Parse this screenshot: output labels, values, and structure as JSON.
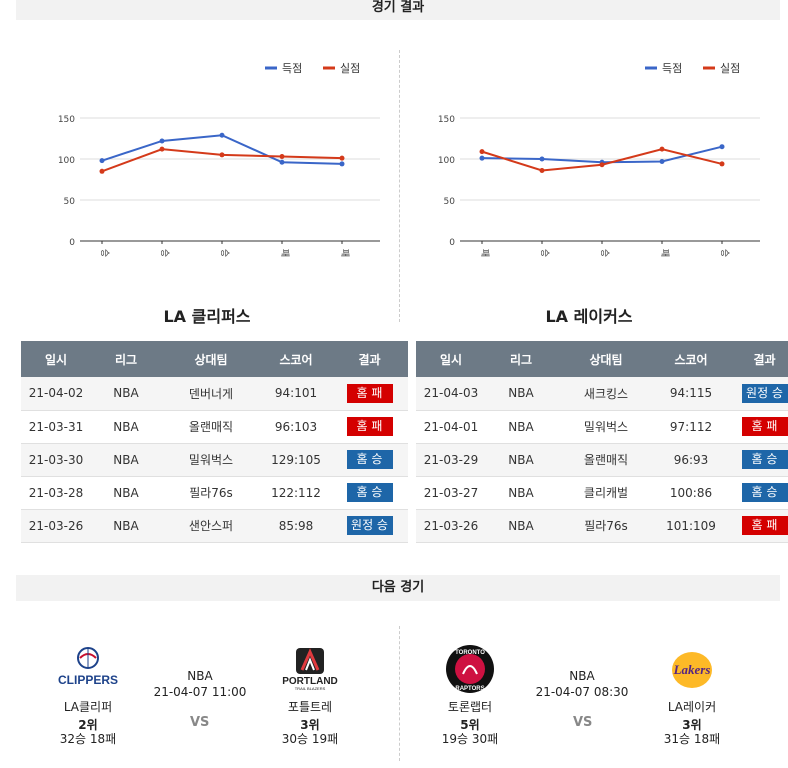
{
  "sections": {
    "results_title": "경기 결과",
    "next_title": "다음 경기"
  },
  "legend": {
    "score": "득점",
    "conceded": "실점"
  },
  "colors": {
    "score": "#3a66c8",
    "conceded": "#d43a1a",
    "red_badge": "#d40000",
    "blue_badge": "#1e66a8"
  },
  "table_headers": {
    "date": "일시",
    "league": "리그",
    "opponent": "상대팀",
    "score": "스코어",
    "result": "결과"
  },
  "left": {
    "team": "LA 클리퍼스",
    "games": [
      {
        "date": "21-04-02",
        "league": "NBA",
        "opponent": "덴버너게",
        "score": "94:101",
        "result": "홈 패",
        "color": "red"
      },
      {
        "date": "21-03-31",
        "league": "NBA",
        "opponent": "올랜매직",
        "score": "96:103",
        "result": "홈 패",
        "color": "red"
      },
      {
        "date": "21-03-30",
        "league": "NBA",
        "opponent": "밀워벅스",
        "score": "129:105",
        "result": "홈 승",
        "color": "blue"
      },
      {
        "date": "21-03-28",
        "league": "NBA",
        "opponent": "필라76s",
        "score": "122:112",
        "result": "홈 승",
        "color": "blue"
      },
      {
        "date": "21-03-26",
        "league": "NBA",
        "opponent": "샌안스퍼",
        "score": "85:98",
        "result": "원정 승",
        "color": "blue"
      }
    ]
  },
  "right": {
    "team": "LA 레이커스",
    "games": [
      {
        "date": "21-04-03",
        "league": "NBA",
        "opponent": "새크킹스",
        "score": "94:115",
        "result": "원정 승",
        "color": "blue"
      },
      {
        "date": "21-04-01",
        "league": "NBA",
        "opponent": "밀워벅스",
        "score": "97:112",
        "result": "홈 패",
        "color": "red"
      },
      {
        "date": "21-03-29",
        "league": "NBA",
        "opponent": "올랜매직",
        "score": "96:93",
        "result": "홈 승",
        "color": "blue"
      },
      {
        "date": "21-03-27",
        "league": "NBA",
        "opponent": "클리캐벌",
        "score": "100:86",
        "result": "홈 승",
        "color": "blue"
      },
      {
        "date": "21-03-26",
        "league": "NBA",
        "opponent": "필라76s",
        "score": "101:109",
        "result": "홈 패",
        "color": "red"
      }
    ]
  },
  "chart_data": [
    {
      "type": "line",
      "categories": [
        "승",
        "승",
        "승",
        "패",
        "패"
      ],
      "series": [
        {
          "name": "득점",
          "values": [
            98,
            122,
            129,
            96,
            94
          ]
        },
        {
          "name": "실점",
          "values": [
            85,
            112,
            105,
            103,
            101
          ]
        }
      ],
      "yticks": [
        0,
        50,
        100,
        150
      ],
      "ylim": [
        0,
        150
      ],
      "legend": "top-right",
      "grid": true
    },
    {
      "type": "line",
      "categories": [
        "패",
        "승",
        "승",
        "패",
        "승"
      ],
      "series": [
        {
          "name": "득점",
          "values": [
            101,
            100,
            96,
            97,
            115
          ]
        },
        {
          "name": "실점",
          "values": [
            109,
            86,
            93,
            112,
            94
          ]
        }
      ],
      "yticks": [
        0,
        50,
        100,
        150
      ],
      "ylim": [
        0,
        150
      ],
      "legend": "top-right",
      "grid": true
    }
  ],
  "next_games": [
    {
      "home": {
        "name": "LA클리퍼",
        "rank": "2위",
        "record": "32승 18패",
        "logo_text": "CLIPPERS"
      },
      "league": "NBA",
      "datetime": "21-04-07 11:00",
      "vs": "VS",
      "away": {
        "name": "포틀트레",
        "rank": "3위",
        "record": "30승 19패",
        "logo_text": "PORTLAND",
        "logo_sub": "TRAIL BLAZERS"
      }
    },
    {
      "home": {
        "name": "토론랩터",
        "rank": "5위",
        "record": "19승 30패",
        "logo_text": "TORONTO",
        "logo_sub": "RAPTORS"
      },
      "league": "NBA",
      "datetime": "21-04-07 08:30",
      "vs": "VS",
      "away": {
        "name": "LA레이커",
        "rank": "3위",
        "record": "31승 18패",
        "logo_text": "Lakers"
      }
    }
  ]
}
